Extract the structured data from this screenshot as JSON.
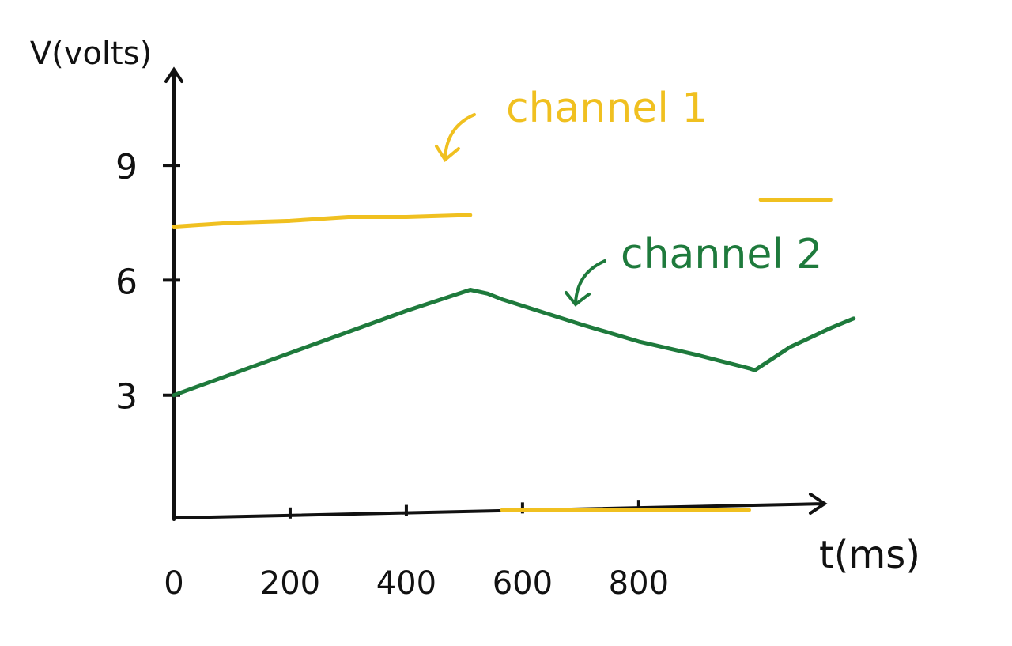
{
  "chart_data": {
    "type": "line",
    "x_label": "t(ms)",
    "y_label": "V(volts)",
    "x": [
      0,
      100,
      200,
      300,
      400,
      510,
      540,
      565,
      700,
      800,
      900,
      990,
      1000,
      1010,
      1060,
      1130,
      1170
    ],
    "series": [
      {
        "name": "channel 1",
        "color": "#f0c020",
        "values": [
          7.4,
          7.5,
          7.55,
          7.65,
          7.65,
          7.7,
          null,
          0,
          0,
          0,
          0,
          0,
          null,
          8.1,
          8.1,
          8.1,
          null
        ]
      },
      {
        "name": "channel 2",
        "color": "#1e7a3c",
        "values": [
          3.0,
          3.55,
          4.1,
          4.65,
          5.2,
          5.75,
          5.65,
          5.5,
          4.85,
          4.4,
          4.05,
          3.7,
          3.65,
          3.75,
          4.25,
          4.75,
          5.0
        ]
      }
    ],
    "xlim": [
      0,
      1120
    ],
    "ylim": [
      0,
      11.5
    ],
    "xticks": [
      0,
      200,
      400,
      600,
      800
    ],
    "yticks": [
      3,
      6,
      9
    ]
  }
}
